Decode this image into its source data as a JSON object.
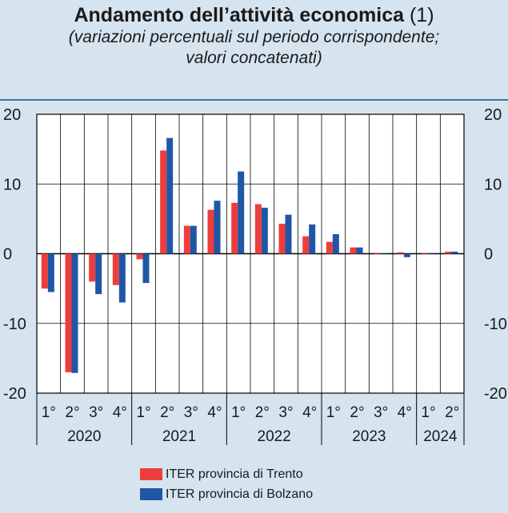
{
  "title": "Andamento dell’attività economica",
  "title_note": "(1)",
  "subtitle_line1": "(variazioni percentuali sul periodo corrispondente;",
  "subtitle_line2": "valori concatenati)",
  "colors": {
    "background": "#d6e4ef",
    "plot_background": "#ffffff",
    "trento": "#ee3e3c",
    "bolzano": "#1f56a6",
    "rule": "#4a6f95"
  },
  "chart_data": {
    "type": "bar",
    "title": "Andamento dell’attività economica",
    "ylim": [
      -20,
      20
    ],
    "yticks": [
      -20,
      -10,
      0,
      10,
      20
    ],
    "ytick_labels": [
      "-20",
      "-10",
      "0",
      "10",
      "20"
    ],
    "grid": true,
    "legend_position": "bottom",
    "categories": [
      "1°",
      "2°",
      "3°",
      "4°",
      "1°",
      "2°",
      "3°",
      "4°",
      "1°",
      "2°",
      "3°",
      "4°",
      "1°",
      "2°",
      "3°",
      "4°",
      "1°",
      "2°"
    ],
    "years": [
      "2020",
      "2021",
      "2022",
      "2023",
      "2024"
    ],
    "year_spans": [
      4,
      4,
      4,
      4,
      2
    ],
    "series": [
      {
        "name": "ITER provincia di Trento",
        "color": "#ee3e3c",
        "values": [
          -5.0,
          -17.0,
          -4.0,
          -4.5,
          -0.8,
          14.8,
          4.0,
          6.3,
          7.3,
          7.1,
          4.3,
          2.5,
          1.7,
          0.9,
          0.1,
          0.2,
          0.1,
          0.3
        ]
      },
      {
        "name": "ITER provincia di Bolzano",
        "color": "#1f56a6",
        "values": [
          -5.5,
          -17.1,
          -5.8,
          -7.0,
          -4.2,
          16.6,
          4.0,
          7.6,
          11.8,
          6.6,
          5.6,
          4.2,
          2.8,
          0.9,
          0.0,
          -0.5,
          0.1,
          0.3
        ]
      }
    ]
  }
}
